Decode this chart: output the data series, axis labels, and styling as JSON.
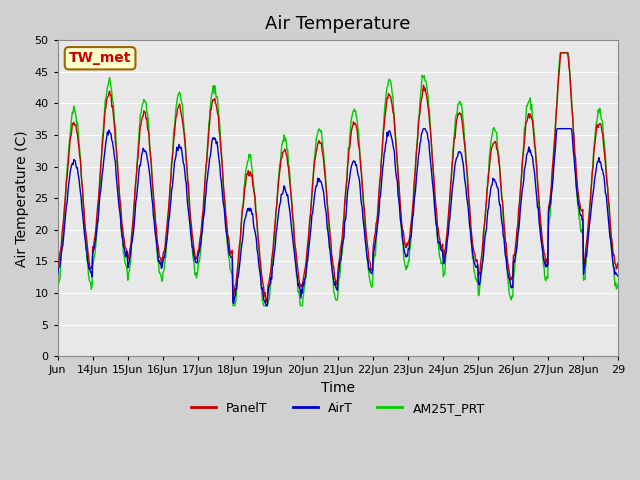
{
  "title": "Air Temperature",
  "ylabel": "Air Temperature (C)",
  "xlabel": "Time",
  "annotation_text": "TW_met",
  "annotation_bg": "#FFFFCC",
  "annotation_border": "#996600",
  "annotation_text_color": "#CC0000",
  "ylim": [
    0,
    50
  ],
  "yticks": [
    0,
    5,
    10,
    15,
    20,
    25,
    30,
    35,
    40,
    45,
    50
  ],
  "plot_bg": "#E8E8E8",
  "fig_bg": "#D0D0D0",
  "grid_color": "#FFFFFF",
  "line_colors": {
    "PanelT": "#CC0000",
    "AirT": "#0000CC",
    "AM25T_PRT": "#00CC00"
  },
  "legend_labels": [
    "PanelT",
    "AirT",
    "AM25T_PRT"
  ],
  "xtick_labels": [
    "Jun",
    "14Jun",
    "15Jun",
    "16Jun",
    "17Jun",
    "18Jun",
    "19Jun",
    "20Jun",
    "21Jun",
    "22Jun",
    "23Jun",
    "24Jun",
    "25Jun",
    "26Jun",
    "27Jun",
    "28Jun",
    "29"
  ],
  "num_days": 16,
  "points_per_day": 48,
  "title_fontsize": 13,
  "axis_label_fontsize": 10,
  "tick_fontsize": 8,
  "legend_fontsize": 9,
  "amp_var": [
    0,
    1.5,
    0.5,
    0.8,
    1.2,
    -2.5,
    -1.5,
    -1,
    0,
    1.5,
    1.8,
    0.5,
    -1,
    0.5,
    4.5,
    0
  ]
}
